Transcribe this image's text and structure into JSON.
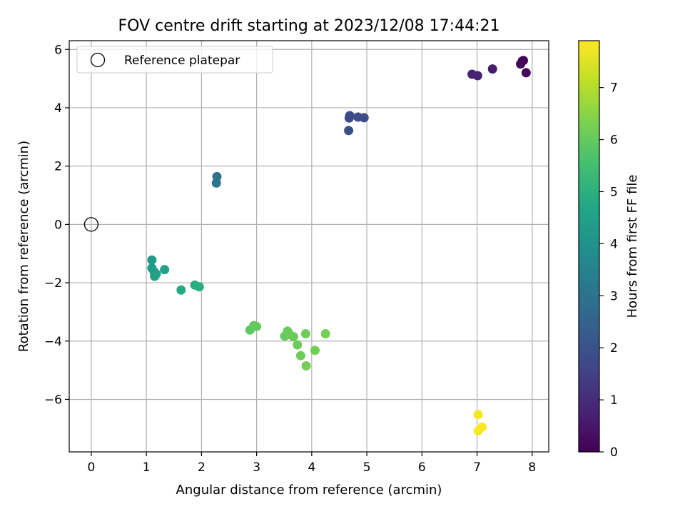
{
  "chart_data": {
    "type": "scatter",
    "title": "FOV centre drift starting at 2023/12/08 17:44:21",
    "xlabel": "Angular distance from reference (arcmin)",
    "ylabel": "Rotation from reference (arcmin)",
    "xlim": [
      -0.4,
      8.3
    ],
    "ylim": [
      -7.8,
      6.3
    ],
    "grid": true,
    "x_ticks": [
      0,
      1,
      2,
      3,
      4,
      5,
      6,
      7,
      8
    ],
    "y_ticks": [
      -6,
      -4,
      -2,
      0,
      2,
      4,
      6
    ],
    "x_tick_labels": [
      "0",
      "1",
      "2",
      "3",
      "4",
      "5",
      "6",
      "7",
      "8"
    ],
    "y_tick_labels": [
      "−6",
      "−4",
      "−2",
      "0",
      "2",
      "4",
      "6"
    ],
    "legend": {
      "placement": "upper-left",
      "entries": [
        {
          "label": "Reference platepar",
          "marker": "open-circle"
        }
      ]
    },
    "reference_point": {
      "x": 0,
      "y": 0
    },
    "colorbar": {
      "label": "Hours from first FF file",
      "colormap": "viridis",
      "range": [
        0,
        7.9
      ],
      "ticks": [
        0,
        1,
        2,
        3,
        4,
        5,
        6,
        7
      ],
      "tick_labels": [
        "0",
        "1",
        "2",
        "3",
        "4",
        "5",
        "6",
        "7"
      ]
    },
    "points": [
      {
        "x": 7.84,
        "y": 5.62,
        "hours": 0.0
      },
      {
        "x": 7.82,
        "y": 5.6,
        "hours": 0.05
      },
      {
        "x": 7.79,
        "y": 5.5,
        "hours": 0.1
      },
      {
        "x": 7.89,
        "y": 5.2,
        "hours": 0.15
      },
      {
        "x": 7.28,
        "y": 5.33,
        "hours": 0.6
      },
      {
        "x": 6.91,
        "y": 5.15,
        "hours": 0.7
      },
      {
        "x": 7.01,
        "y": 5.1,
        "hours": 0.75
      },
      {
        "x": 4.69,
        "y": 3.73,
        "hours": 1.7
      },
      {
        "x": 4.68,
        "y": 3.65,
        "hours": 1.75
      },
      {
        "x": 4.84,
        "y": 3.68,
        "hours": 1.8
      },
      {
        "x": 4.95,
        "y": 3.66,
        "hours": 1.85
      },
      {
        "x": 4.67,
        "y": 3.22,
        "hours": 1.9
      },
      {
        "x": 2.28,
        "y": 1.64,
        "hours": 3.0
      },
      {
        "x": 2.27,
        "y": 1.42,
        "hours": 3.05
      },
      {
        "x": 1.1,
        "y": -1.22,
        "hours": 4.3
      },
      {
        "x": 1.1,
        "y": -1.5,
        "hours": 4.35
      },
      {
        "x": 1.14,
        "y": -1.62,
        "hours": 4.4
      },
      {
        "x": 1.18,
        "y": -1.7,
        "hours": 4.45
      },
      {
        "x": 1.15,
        "y": -1.78,
        "hours": 4.5
      },
      {
        "x": 1.33,
        "y": -1.55,
        "hours": 4.55
      },
      {
        "x": 1.63,
        "y": -2.25,
        "hours": 4.8
      },
      {
        "x": 1.88,
        "y": -2.08,
        "hours": 4.9
      },
      {
        "x": 1.96,
        "y": -2.14,
        "hours": 4.95
      },
      {
        "x": 2.88,
        "y": -3.62,
        "hours": 5.9
      },
      {
        "x": 2.95,
        "y": -3.47,
        "hours": 5.95
      },
      {
        "x": 3.0,
        "y": -3.5,
        "hours": 6.0
      },
      {
        "x": 3.51,
        "y": -3.83,
        "hours": 6.0
      },
      {
        "x": 3.56,
        "y": -3.66,
        "hours": 6.05
      },
      {
        "x": 3.6,
        "y": -3.78,
        "hours": 6.05
      },
      {
        "x": 3.67,
        "y": -3.85,
        "hours": 6.1
      },
      {
        "x": 3.74,
        "y": -4.13,
        "hours": 6.1
      },
      {
        "x": 3.8,
        "y": -4.5,
        "hours": 6.15
      },
      {
        "x": 3.89,
        "y": -3.75,
        "hours": 6.15
      },
      {
        "x": 3.9,
        "y": -4.85,
        "hours": 6.2
      },
      {
        "x": 4.06,
        "y": -4.32,
        "hours": 6.2
      },
      {
        "x": 4.25,
        "y": -3.75,
        "hours": 6.25
      },
      {
        "x": 7.02,
        "y": -6.52,
        "hours": 7.8
      },
      {
        "x": 7.02,
        "y": -7.08,
        "hours": 7.85
      },
      {
        "x": 7.09,
        "y": -6.95,
        "hours": 7.9
      }
    ]
  }
}
